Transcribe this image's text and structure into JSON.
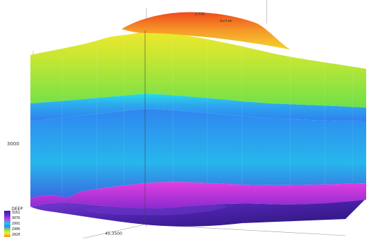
{
  "axis": {
    "depth_label": "3000",
    "x_label": "45,3500",
    "top_labels": [
      "2,725",
      "Surf-ok"
    ]
  },
  "legend": {
    "title": "DEEP",
    "ticks": [
      "3161",
      "3076",
      "2991",
      "2906",
      "2820"
    ]
  },
  "colors": {
    "top": "#f25a1d",
    "orange": "#f6a72b",
    "yellow": "#f0ec2a",
    "green": "#84e23c",
    "cyan": "#22d4ea",
    "blue": "#2f8cf0",
    "magenta": "#d23ddc",
    "purple": "#5a2bc6",
    "base": "#3a1a8c"
  }
}
